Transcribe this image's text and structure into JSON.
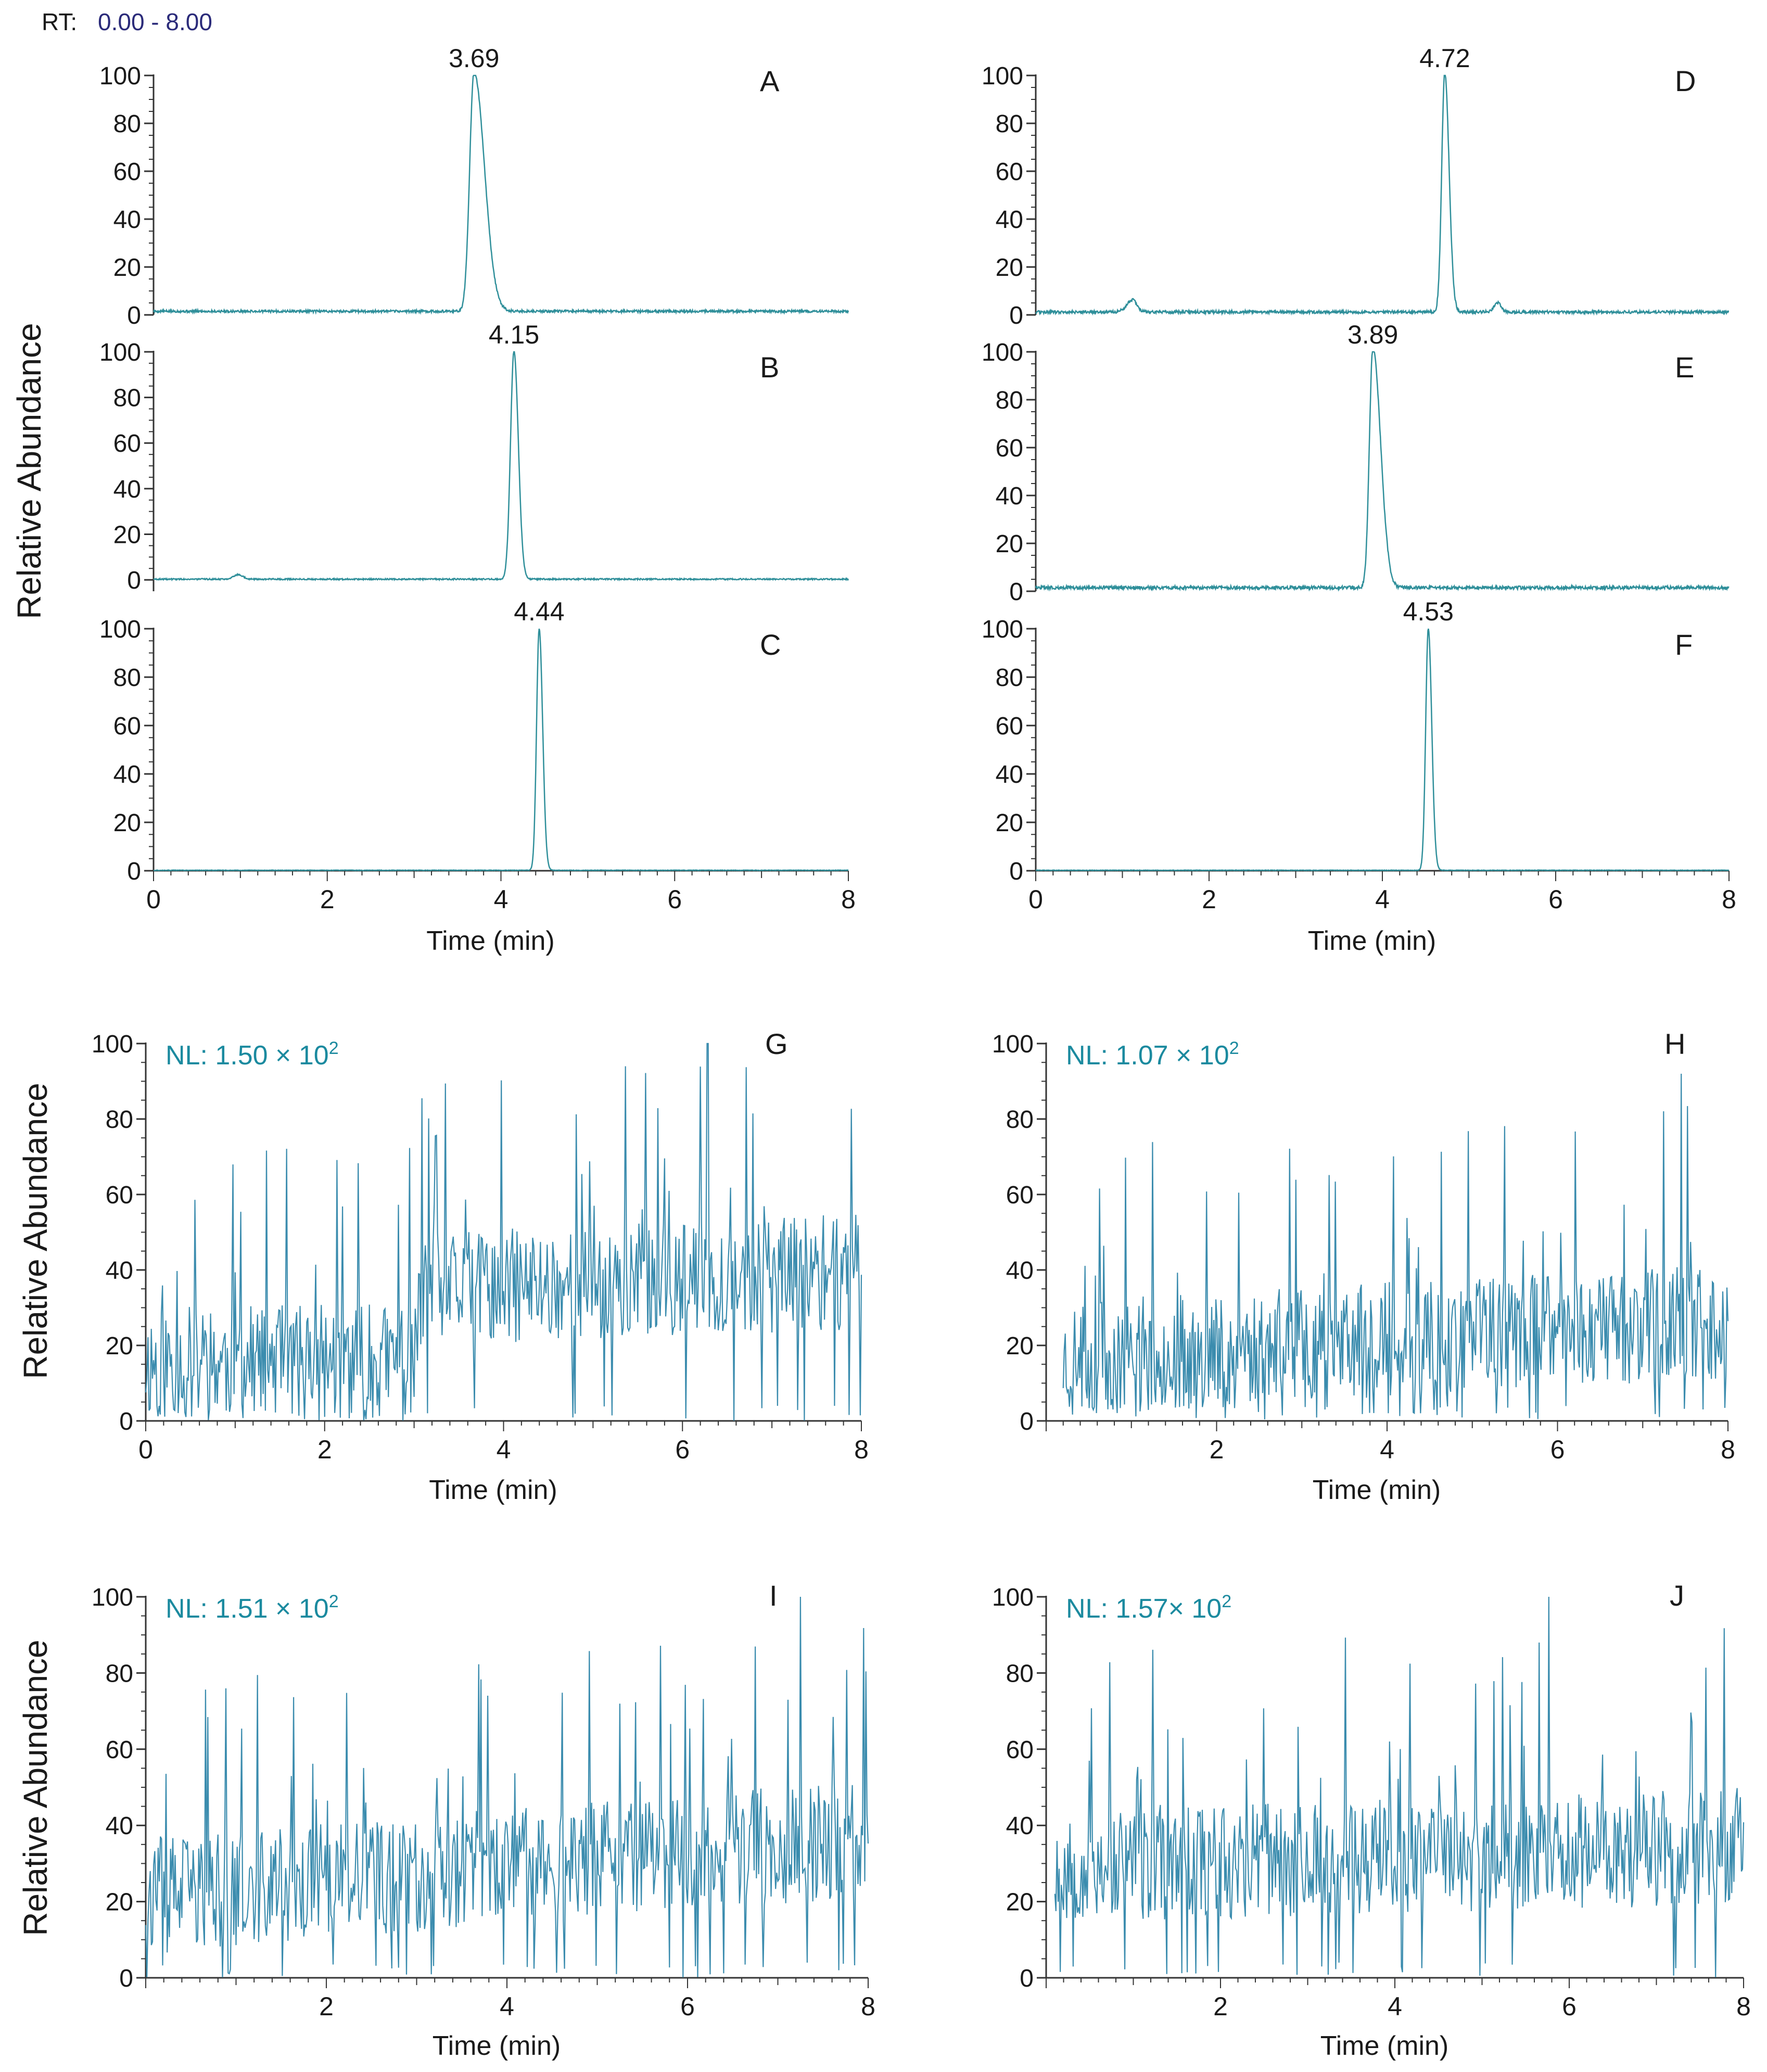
{
  "header": {
    "rt_label": "RT:",
    "rt_range": "0.00 - 8.00"
  },
  "colors": {
    "trace": "#2f8f9a",
    "trace_noise": "#3b8cae",
    "axis": "#333333",
    "nl_text": "#1b8a9f",
    "rt_value": "#2b2b7a",
    "text": "#1a1a1a"
  },
  "chart_data": [
    {
      "type": "line",
      "panel": "A",
      "peak_label": "3.69",
      "xlabel": "",
      "ylabel": "Relative Abundance",
      "xlim": [
        0,
        8
      ],
      "ylim": [
        0,
        100
      ],
      "yticks": [
        "0",
        "20",
        "40",
        "60",
        "80",
        "100"
      ],
      "xticks": [],
      "peaks": [
        {
          "rt": 3.69,
          "height": 100,
          "width": 0.05,
          "tail": 0.12
        }
      ],
      "baseline": 1.5,
      "noise": 0.5
    },
    {
      "type": "line",
      "panel": "B",
      "peak_label": "4.15",
      "xlabel": "",
      "ylabel": "",
      "xlim": [
        0,
        8
      ],
      "ylim": [
        -5,
        100
      ],
      "yticks": [
        "0",
        "20",
        "40",
        "60",
        "80",
        "100"
      ],
      "xticks": [],
      "peaks": [
        {
          "rt": 4.15,
          "height": 100,
          "width": 0.04,
          "tail": 0.05
        },
        {
          "rt": 0.98,
          "height": 2,
          "width": 0.06,
          "tail": 0.05
        }
      ],
      "baseline": 0.3,
      "noise": 0.3
    },
    {
      "type": "line",
      "panel": "C",
      "peak_label": "4.44",
      "xlabel": "Time (min)",
      "ylabel": "",
      "xlim": [
        0,
        8
      ],
      "ylim": [
        0,
        100
      ],
      "yticks": [
        "0",
        "20",
        "40",
        "60",
        "80",
        "100"
      ],
      "xticks": [
        "0",
        "2",
        "4",
        "6",
        "8"
      ],
      "peaks": [
        {
          "rt": 4.44,
          "height": 100,
          "width": 0.03,
          "tail": 0.04
        }
      ],
      "baseline": 0.2,
      "noise": 0.1
    },
    {
      "type": "line",
      "panel": "D",
      "peak_label": "4.72",
      "xlabel": "",
      "ylabel": "",
      "xlim": [
        0,
        8
      ],
      "ylim": [
        0,
        100
      ],
      "yticks": [
        "0",
        "20",
        "40",
        "60",
        "80",
        "100"
      ],
      "xticks": [],
      "peaks": [
        {
          "rt": 4.72,
          "height": 100,
          "width": 0.035,
          "tail": 0.05
        },
        {
          "rt": 1.12,
          "height": 5,
          "width": 0.07,
          "tail": 0.05
        },
        {
          "rt": 5.33,
          "height": 4,
          "width": 0.04,
          "tail": 0.04
        }
      ],
      "baseline": 1.2,
      "noise": 0.6
    },
    {
      "type": "line",
      "panel": "E",
      "peak_label": "3.89",
      "xlabel": "",
      "ylabel": "",
      "xlim": [
        0,
        8
      ],
      "ylim": [
        0,
        100
      ],
      "yticks": [
        "0",
        "20",
        "40",
        "60",
        "80",
        "100"
      ],
      "xticks": [],
      "peaks": [
        {
          "rt": 3.89,
          "height": 100,
          "width": 0.04,
          "tail": 0.09
        }
      ],
      "baseline": 1.5,
      "noise": 0.7
    },
    {
      "type": "line",
      "panel": "F",
      "peak_label": "4.53",
      "xlabel": "Time (min)",
      "ylabel": "",
      "xlim": [
        0,
        8
      ],
      "ylim": [
        0,
        100
      ],
      "yticks": [
        "0",
        "20",
        "40",
        "60",
        "80",
        "100"
      ],
      "xticks": [
        "0",
        "2",
        "4",
        "6",
        "8"
      ],
      "peaks": [
        {
          "rt": 4.53,
          "height": 100,
          "width": 0.03,
          "tail": 0.04
        }
      ],
      "baseline": 0.2,
      "noise": 0.1
    },
    {
      "type": "line",
      "panel": "G",
      "nl_label": "NL: 1.50 × 10",
      "nl_exp": "2",
      "xlabel": "Time (min)",
      "ylabel": "Relative Abundance",
      "xlim": [
        0,
        8
      ],
      "ylim": [
        0,
        100
      ],
      "yticks": [
        "0",
        "20",
        "40",
        "60",
        "80",
        "100"
      ],
      "xticks": [
        "0",
        "2",
        "4",
        "6",
        "8"
      ],
      "noise_profile": [
        [
          0,
          14
        ],
        [
          3,
          14
        ],
        [
          3.1,
          33
        ],
        [
          8,
          38
        ]
      ],
      "noise_amp": 14,
      "max_peak": {
        "x": 6.28,
        "y": 100
      },
      "seed": 11
    },
    {
      "type": "line",
      "panel": "H",
      "nl_label": "NL: 1.07 × 10",
      "nl_exp": "2",
      "xlabel": "Time (min)",
      "ylabel": "",
      "xlim": [
        0,
        8
      ],
      "ylim": [
        0,
        100
      ],
      "yticks": [
        "0",
        "20",
        "40",
        "60",
        "80",
        "100"
      ],
      "xticks": [
        "2",
        "4",
        "6",
        "8"
      ],
      "noise_profile": [
        [
          0.2,
          15
        ],
        [
          8,
          25
        ]
      ],
      "noise_amp": 14,
      "max_peak": {
        "x": 7.45,
        "y": 92
      },
      "seed": 23
    },
    {
      "type": "line",
      "panel": "I",
      "nl_label": "NL: 1.51 × 10",
      "nl_exp": "2",
      "xlabel": "Time (min)",
      "ylabel": "Relative Abundance",
      "xlim": [
        0,
        8
      ],
      "ylim": [
        0,
        100
      ],
      "yticks": [
        "0",
        "20",
        "40",
        "60",
        "80",
        "100"
      ],
      "xticks": [
        "2",
        "4",
        "6",
        "8"
      ],
      "noise_profile": [
        [
          0,
          20
        ],
        [
          8,
          35
        ]
      ],
      "noise_amp": 14,
      "max_peak": {
        "x": 7.25,
        "y": 100
      },
      "seed": 37
    },
    {
      "type": "line",
      "panel": "J",
      "nl_label": "NL: 1.57× 10",
      "nl_exp": "2",
      "xlabel": "Time (min)",
      "ylabel": "",
      "xlim": [
        0,
        8
      ],
      "ylim": [
        0,
        100
      ],
      "yticks": [
        "0",
        "20",
        "40",
        "60",
        "80",
        "100"
      ],
      "xticks": [
        "2",
        "4",
        "6",
        "8"
      ],
      "noise_profile": [
        [
          0.1,
          28
        ],
        [
          8,
          33
        ]
      ],
      "noise_amp": 14,
      "max_peak": {
        "x": 5.77,
        "y": 100
      },
      "seed": 53
    }
  ]
}
